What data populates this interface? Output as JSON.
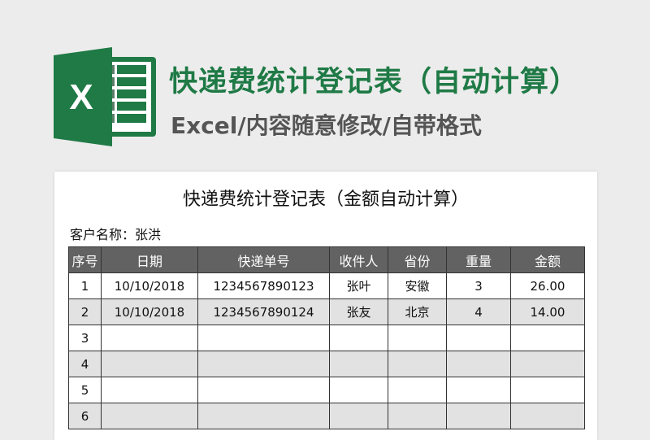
{
  "header": {
    "title": "快递费统计登记表（自动计算）",
    "subtitle": "Excel/内容随意修改/自带格式",
    "logo_letter": "X",
    "brand_color": "#1f7a46"
  },
  "sheet": {
    "title": "快递费统计登记表（金额自动计算）",
    "customer": "客户名称：张洪",
    "columns": [
      "序号",
      "日期",
      "快递单号",
      "收件人",
      "省份",
      "重量",
      "金额"
    ],
    "rows": [
      [
        "1",
        "10/10/2018",
        "1234567890123",
        "张叶",
        "安徽",
        "3",
        "26.00"
      ],
      [
        "2",
        "10/10/2018",
        "1234567890124",
        "张友",
        "北京",
        "4",
        "14.00"
      ],
      [
        "3",
        "",
        "",
        "",
        "",
        "",
        ""
      ],
      [
        "4",
        "",
        "",
        "",
        "",
        "",
        ""
      ],
      [
        "5",
        "",
        "",
        "",
        "",
        "",
        ""
      ],
      [
        "6",
        "",
        "",
        "",
        "",
        "",
        ""
      ]
    ]
  }
}
